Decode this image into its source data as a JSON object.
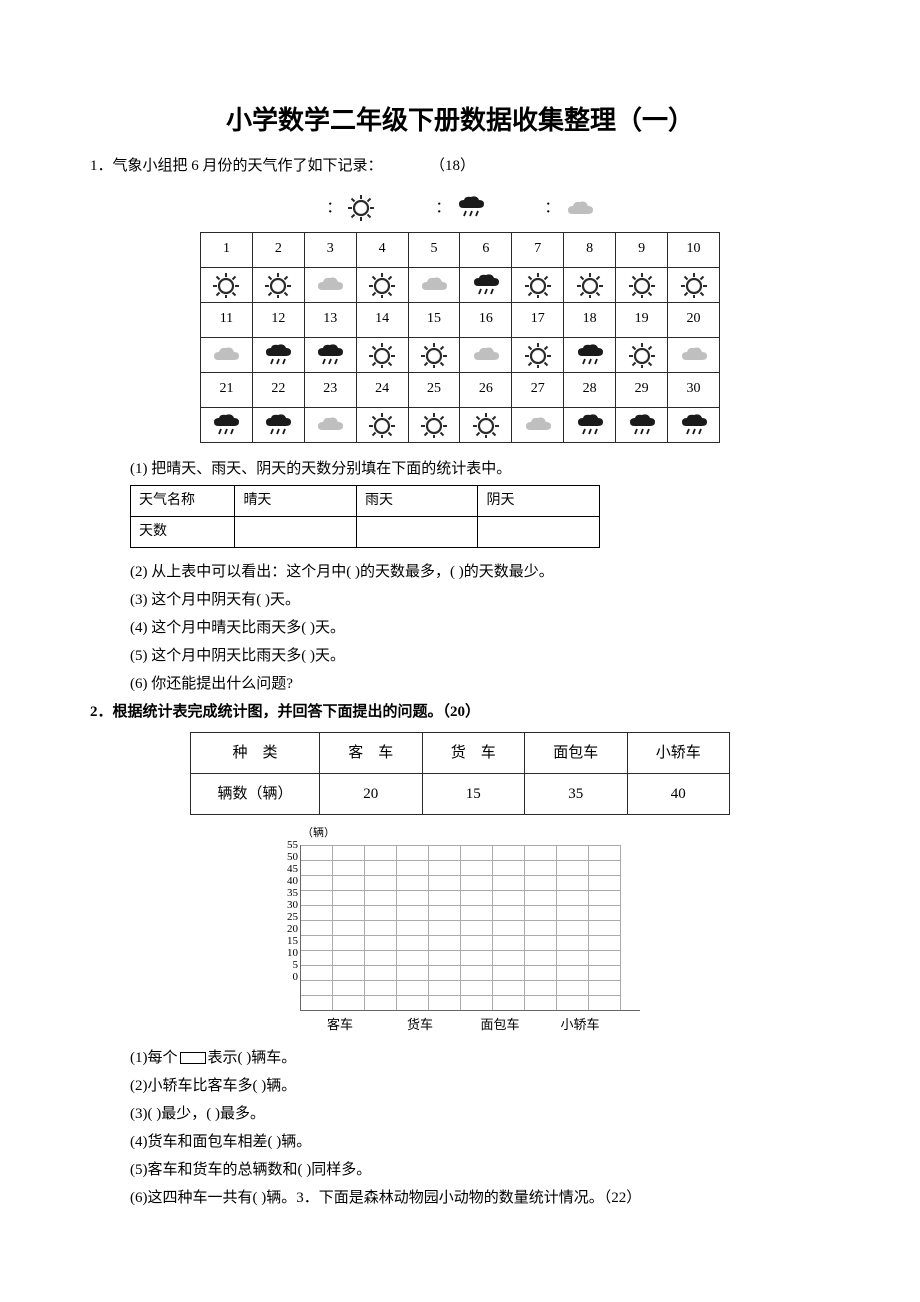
{
  "title": "小学数学二年级下册数据收集整理（一）",
  "q1": {
    "num": "1．",
    "intro_a": "气象小组把 6 月份的天气作了如下记录：",
    "intro_score": "（18）",
    "legend": {
      "colon": "："
    },
    "calendar": {
      "days": [
        "1",
        "2",
        "3",
        "4",
        "5",
        "6",
        "7",
        "8",
        "9",
        "10",
        "11",
        "12",
        "13",
        "14",
        "15",
        "16",
        "17",
        "18",
        "19",
        "20",
        "21",
        "22",
        "23",
        "24",
        "25",
        "26",
        "27",
        "28",
        "29",
        "30"
      ],
      "weather": [
        "sun",
        "sun",
        "cloud",
        "sun",
        "cloud",
        "rain",
        "sun",
        "sun",
        "sun",
        "sun",
        "cloud",
        "rain",
        "rain",
        "sun",
        "sun",
        "cloud",
        "sun",
        "rain",
        "sun",
        "cloud",
        "rain",
        "rain",
        "cloud",
        "sun",
        "sun",
        "sun",
        "cloud",
        "rain",
        "rain",
        "rain"
      ]
    },
    "sub1": {
      "label": "(1) 把晴天、雨天、阴天的天数分别填在下面的统计表中。",
      "table": {
        "header_label": "天气名称",
        "cols": [
          "晴天",
          "雨天",
          "阴天"
        ],
        "row_label": "天数"
      }
    },
    "sub2": "(2) 从上表中可以看出：这个月中(      )的天数最多，(      )的天数最少。",
    "sub3": "(3) 这个月中阴天有(      )天。",
    "sub4": "(4) 这个月中晴天比雨天多(      )天。",
    "sub5": "(5) 这个月中阴天比雨天多(      )天。",
    "sub6": "(6) 你还能提出什么问题?"
  },
  "q2": {
    "heading": "2．根据统计表完成统计图，并回答下面提出的问题。（20）",
    "table": {
      "head_label": "种　类",
      "row_label": "辆数（辆）",
      "cols": [
        "客　车",
        "货　车",
        "面包车",
        "小轿车"
      ],
      "values": [
        "20",
        "15",
        "35",
        "40"
      ]
    },
    "chart": {
      "unit": "（辆）",
      "y_max": 55,
      "y_step": 5,
      "y_ticks": [
        "55",
        "50",
        "45",
        "40",
        "35",
        "30",
        "25",
        "20",
        "15",
        "10",
        "5",
        "0"
      ],
      "x_labels": [
        "客车",
        "货车",
        "面包车",
        "小轿车"
      ]
    },
    "sub1_a": "(1)每个",
    "sub1_b": "表示(      )辆车。",
    "sub2": "(2)小轿车比客车多(      )辆。",
    "sub3": "(3)(      )最少，(      )最多。",
    "sub4": "(4)货车和面包车相差(      )辆。",
    "sub5": "(5)客车和货车的总辆数和(      )同样多。",
    "sub6": "(6)这四种车一共有(      )辆。",
    "q3_tail": "3．下面是森林动物园小动物的数量统计情况。（22）"
  },
  "icons": {
    "sun_color": "#2b2b2b",
    "cloud_color": "#6a6a6a",
    "rain_color": "#1a1a1a"
  }
}
